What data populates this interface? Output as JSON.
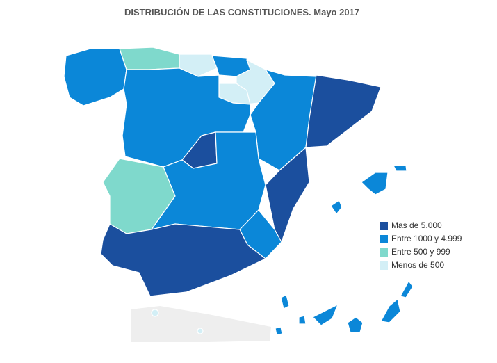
{
  "title": "DISTRIBUCIÓN DE LAS CONSTITUCIONES. Mayo 2017",
  "legend": {
    "items": [
      {
        "label": "Mas de 5.000",
        "color": "#1b4f9e"
      },
      {
        "label": "Entre 1000 y 4.999",
        "color": "#0b87d8"
      },
      {
        "label": "Entre 500 y 999",
        "color": "#7fd9cc"
      },
      {
        "label": "Menos de 500",
        "color": "#d3eff6"
      }
    ]
  }
}
